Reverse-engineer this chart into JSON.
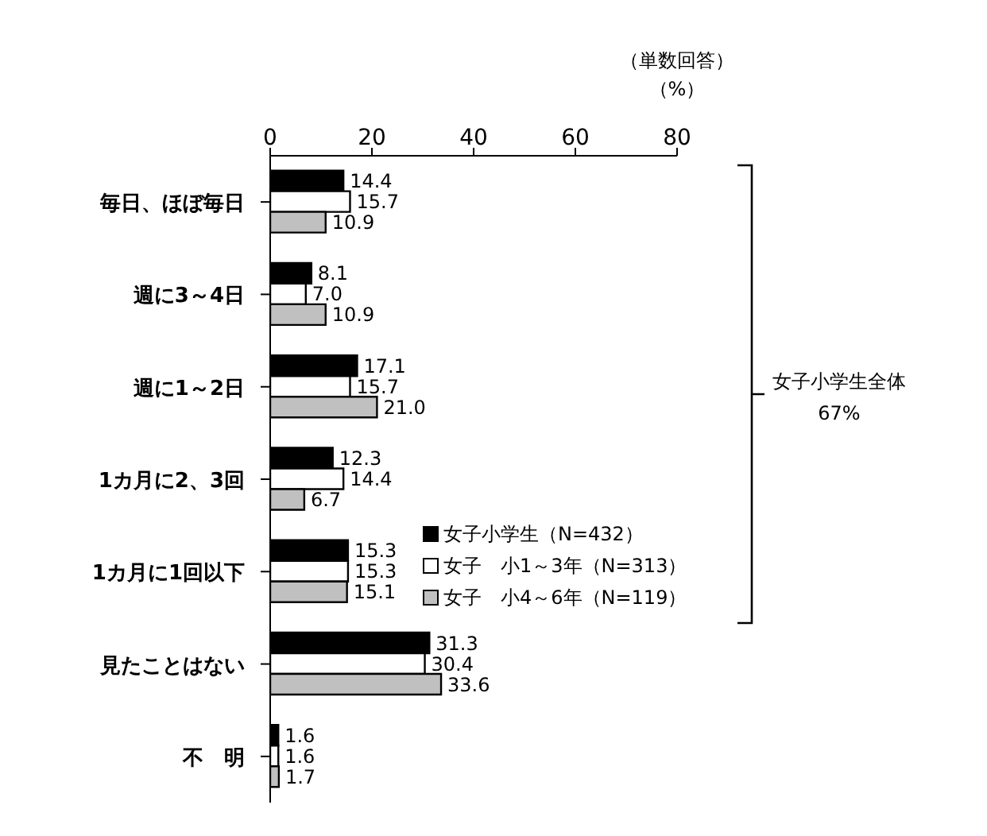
{
  "chart_data": {
    "type": "bar",
    "orientation": "horizontal",
    "categories": [
      "毎日、ほぼ毎日",
      "週に3～4日",
      "週に1～2日",
      "1カ月に2、3回",
      "1カ月に1回以下",
      "見たことはない",
      "不　明"
    ],
    "series": [
      {
        "name": "女子小学生（N=432）",
        "color": "#000000",
        "values": [
          14.4,
          8.1,
          17.1,
          12.3,
          15.3,
          31.3,
          1.6
        ],
        "value_labels": [
          "14.4",
          "8.1",
          "17.1",
          "12.3",
          "15.3",
          "31.3",
          "1.6"
        ]
      },
      {
        "name": "女子　小1～3年（N=313）",
        "color": "#ffffff",
        "values": [
          15.7,
          7.0,
          15.7,
          14.4,
          15.3,
          30.4,
          1.6
        ],
        "value_labels": [
          "15.7",
          "7.0",
          "15.7",
          "14.4",
          "15.3",
          "30.4",
          "1.6"
        ]
      },
      {
        "name": "女子　小4～6年（N=119）",
        "color": "#c0c0c0",
        "values": [
          10.9,
          10.9,
          21.0,
          6.7,
          15.1,
          33.6,
          1.7
        ],
        "value_labels": [
          "10.9",
          "10.9",
          "21.0",
          "6.7",
          "15.1",
          "33.6",
          "1.7"
        ]
      }
    ],
    "xlim": [
      0,
      80
    ],
    "xticks": [
      0,
      20,
      40,
      60,
      80
    ],
    "legend": "right",
    "annotations": [
      "（単数回答）",
      "（%）",
      "女子小学生全体\n67%"
    ]
  }
}
